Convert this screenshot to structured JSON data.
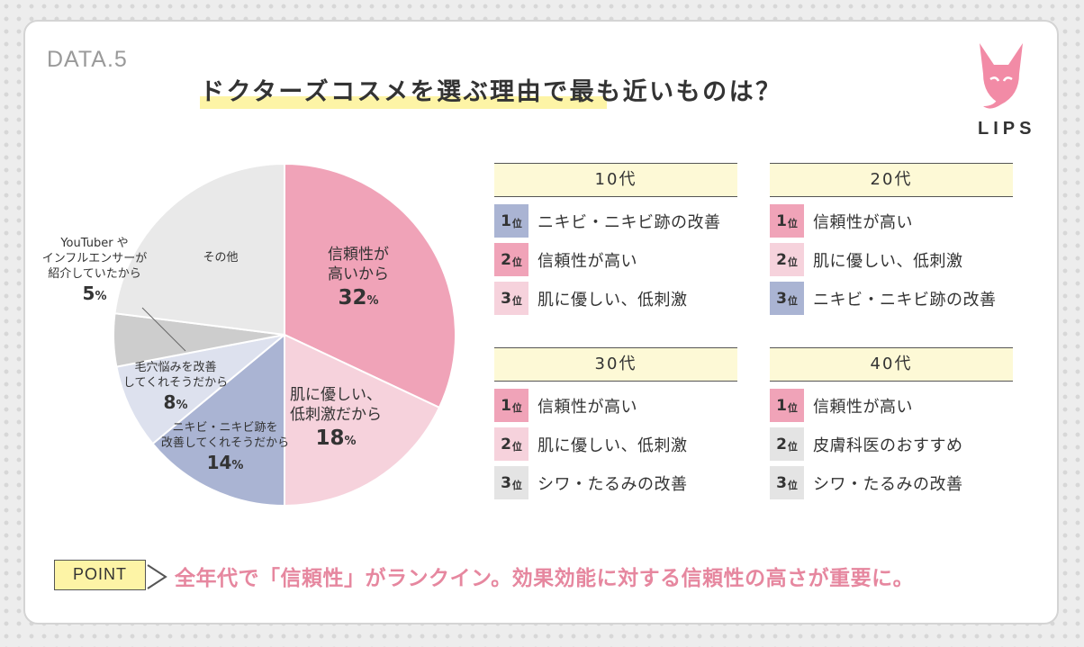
{
  "data_label": "DATA.5",
  "title": "ドクターズコスメを選ぶ理由で最も近いものは？",
  "logo": {
    "text": "LIPS",
    "icon": "fox-icon",
    "color": "#f28ba6"
  },
  "colors": {
    "pink_dark": "#f0a3b8",
    "pink_light": "#f6d2dc",
    "blue_dark": "#aab4d3",
    "blue_light": "#dde1ee",
    "gray_dark": "#cdcdcd",
    "gray_light": "#e9e9e9",
    "gray_mark": "#e4e4e4",
    "accent_pink": "#e6879f"
  },
  "chart_data": {
    "type": "pie",
    "title": "ドクターズコスメを選ぶ理由で最も近いものは？",
    "slices": [
      {
        "label": "信頼性が高いから",
        "value": 32,
        "color": "#f0a3b8"
      },
      {
        "label": "肌に優しい、低刺激だから",
        "value": 18,
        "color": "#f6d2dc"
      },
      {
        "label": "ニキビ・ニキビ跡を改善してくれそうだから",
        "value": 14,
        "color": "#aab4d3"
      },
      {
        "label": "毛穴悩みを改善してくれそうだから",
        "value": 8,
        "color": "#dde1ee"
      },
      {
        "label": "YouTuber やインフルエンサーが紹介していたから",
        "value": 5,
        "color": "#cdcdcd"
      },
      {
        "label": "その他",
        "value": 23,
        "color": "#e9e9e9"
      }
    ],
    "display": [
      {
        "lines": [
          "信頼性が",
          "高いから"
        ],
        "pct": "32"
      },
      {
        "lines": [
          "肌に優しい、",
          "低刺激だから"
        ],
        "pct": "18"
      },
      {
        "lines": [
          "ニキビ・ニキビ跡を",
          "改善してくれそうだから"
        ],
        "pct": "14"
      },
      {
        "lines": [
          "毛穴悩みを改善",
          "してくれそうだから"
        ],
        "pct": "8"
      },
      {
        "lines": [
          "YouTuber や",
          "インフルエンサーが",
          "紹介していたから"
        ],
        "pct": "5"
      },
      {
        "lines": [
          "その他"
        ],
        "pct": ""
      }
    ],
    "pct_unit": "%"
  },
  "rankings": [
    {
      "age": "10代",
      "items": [
        {
          "rank": "1",
          "unit": "位",
          "text": "ニキビ・ニキビ跡の改善",
          "color": "#aab4d3"
        },
        {
          "rank": "2",
          "unit": "位",
          "text": "信頼性が高い",
          "color": "#f0a3b8"
        },
        {
          "rank": "3",
          "unit": "位",
          "text": "肌に優しい、低刺激",
          "color": "#f6d2dc"
        }
      ]
    },
    {
      "age": "20代",
      "items": [
        {
          "rank": "1",
          "unit": "位",
          "text": "信頼性が高い",
          "color": "#f0a3b8"
        },
        {
          "rank": "2",
          "unit": "位",
          "text": "肌に優しい、低刺激",
          "color": "#f6d2dc"
        },
        {
          "rank": "3",
          "unit": "位",
          "text": "ニキビ・ニキビ跡の改善",
          "color": "#aab4d3"
        }
      ]
    },
    {
      "age": "30代",
      "items": [
        {
          "rank": "1",
          "unit": "位",
          "text": "信頼性が高い",
          "color": "#f0a3b8"
        },
        {
          "rank": "2",
          "unit": "位",
          "text": "肌に優しい、低刺激",
          "color": "#f6d2dc"
        },
        {
          "rank": "3",
          "unit": "位",
          "text": "シワ・たるみの改善",
          "color": "#e4e4e4"
        }
      ]
    },
    {
      "age": "40代",
      "items": [
        {
          "rank": "1",
          "unit": "位",
          "text": "信頼性が高い",
          "color": "#f0a3b8"
        },
        {
          "rank": "2",
          "unit": "位",
          "text": "皮膚科医のおすすめ",
          "color": "#e4e4e4"
        },
        {
          "rank": "3",
          "unit": "位",
          "text": "シワ・たるみの改善",
          "color": "#e4e4e4"
        }
      ]
    }
  ],
  "point": {
    "badge": "POINT",
    "text": "全年代で「信頼性」がランクイン。効果効能に対する信頼性の高さが重要に。"
  }
}
